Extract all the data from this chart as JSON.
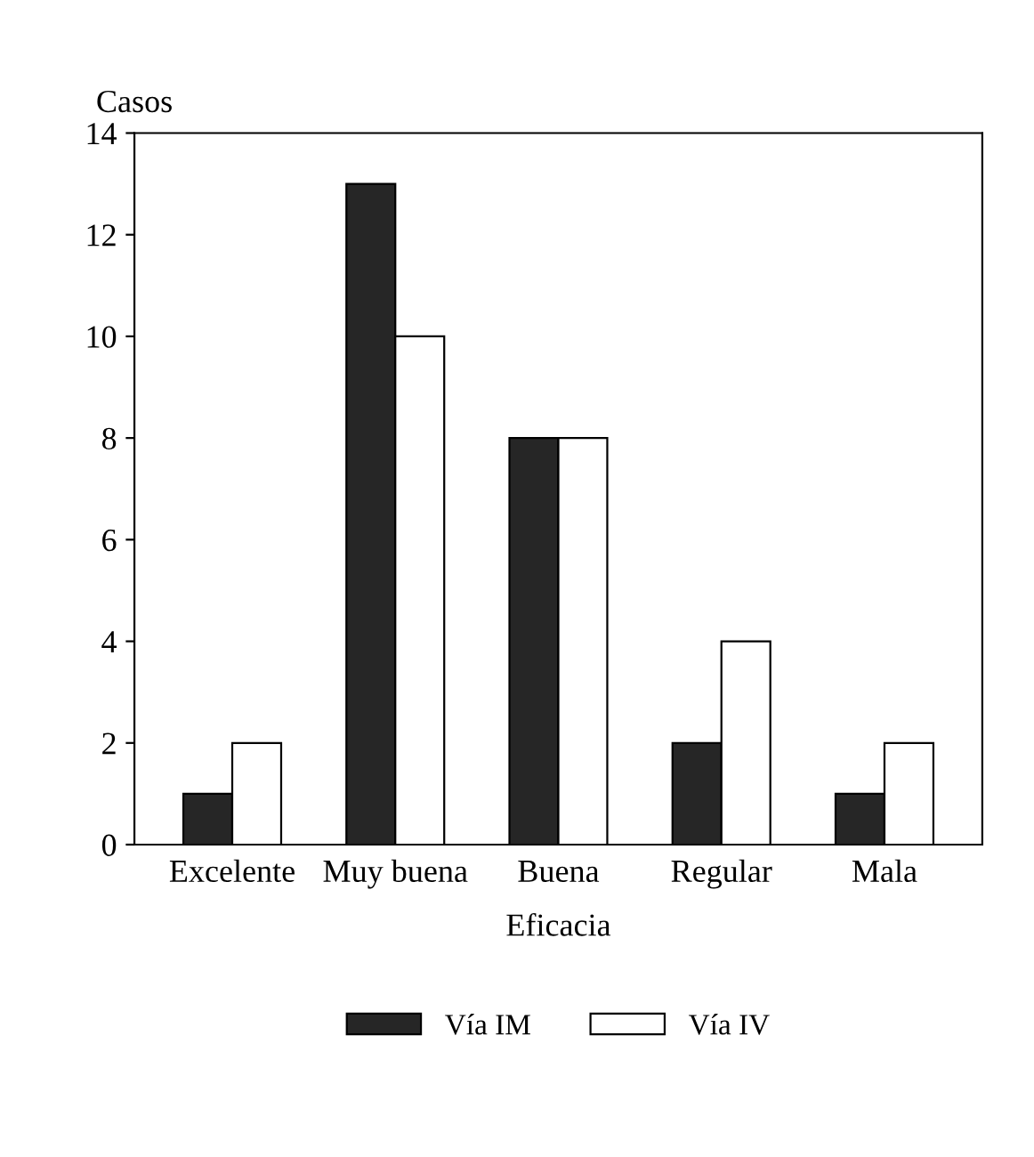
{
  "chart_data": {
    "type": "bar",
    "ylabel": "Casos",
    "xlabel": "Eficacia",
    "categories": [
      "Excelente",
      "Muy buena",
      "Buena",
      "Regular",
      "Mala"
    ],
    "series": [
      {
        "name": "Vía IM",
        "color": "#262626",
        "values": [
          1,
          13,
          8,
          2,
          1
        ]
      },
      {
        "name": "Vía IV",
        "color": "#ffffff",
        "values": [
          2,
          10,
          8,
          4,
          2
        ]
      }
    ],
    "ylim": [
      0,
      14
    ],
    "yticks": [
      0,
      2,
      4,
      6,
      8,
      10,
      12,
      14
    ],
    "grid": false,
    "legend": "bottom"
  }
}
